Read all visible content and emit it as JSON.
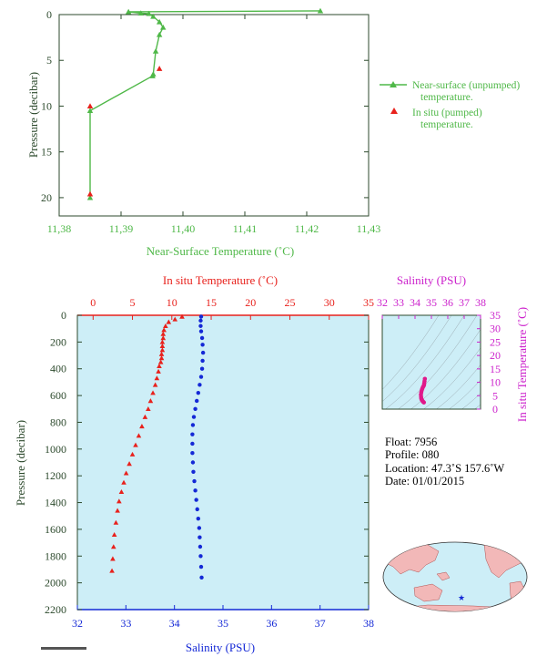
{
  "colors": {
    "green": "#4fb848",
    "red": "#e8211c",
    "blue": "#1428d6",
    "magenta": "#cc22cc",
    "axis_dark": "#2d4a2d",
    "panel_bg": "#cdeef7"
  },
  "chart_data": [
    {
      "type": "line",
      "xlabel": "Near-Surface Temperature (˚C)",
      "ylabel": "Pressure (decibar)",
      "xlim": [
        11.38,
        11.43
      ],
      "ylim": [
        22,
        0
      ],
      "xticks": [
        "11.38",
        "11.39",
        "11.40",
        "11.41",
        "11.42",
        "11.43"
      ],
      "yticks": [
        "0",
        "5",
        "10",
        "15",
        "20"
      ],
      "legend_position": "right",
      "series": [
        {
          "name": "Near-surface (unpumped) temperature.",
          "name_lines": [
            "Near-surface (unpumped)",
            "temperature."
          ],
          "marker": "triangle",
          "x": [
            11.4222,
            11.3912,
            11.3932,
            11.3945,
            11.3952,
            11.3962,
            11.3968,
            11.3962,
            11.3956,
            11.3952,
            11.3951,
            11.385,
            11.385
          ],
          "y": [
            -0.4,
            -0.3,
            -0.15,
            -0.1,
            0.2,
            0.8,
            1.4,
            2.2,
            4.0,
            6.5,
            6.7,
            10.5,
            20.0
          ]
        },
        {
          "name": "In situ (pumped) temperature.",
          "name_lines": [
            "In situ (pumped)",
            "temperature."
          ],
          "marker": "triangle",
          "x": [
            11.3962,
            11.385,
            11.385
          ],
          "y": [
            5.9,
            10.0,
            19.6
          ]
        }
      ]
    },
    {
      "type": "line",
      "xlabel_bottom": "Salinity (PSU)",
      "xlabel_top": "In situ Temperature (˚C)",
      "ylabel": "Pressure (decibar)",
      "xlim_salinity": [
        32,
        38
      ],
      "xlim_temperature": [
        -2,
        35
      ],
      "ylim": [
        2200,
        0
      ],
      "xticks_salinity": [
        "32",
        "33",
        "34",
        "35",
        "36",
        "37",
        "38"
      ],
      "xticks_temperature": [
        "0",
        "5",
        "10",
        "15",
        "20",
        "25",
        "30",
        "35"
      ],
      "yticks": [
        "0",
        "200",
        "400",
        "600",
        "800",
        "1000",
        "1200",
        "1400",
        "1600",
        "1800",
        "2000",
        "2200"
      ],
      "series": [
        {
          "marker": "triangle",
          "axis": "temperature",
          "x": [
            11.3,
            10.4,
            9.6,
            9.2,
            9.0,
            8.9,
            8.9,
            8.8,
            8.8,
            8.8,
            8.7,
            8.7,
            8.6,
            8.4,
            8.3,
            8.1,
            7.9,
            7.6,
            7.3,
            7.0,
            6.6,
            6.2,
            5.8,
            5.4,
            5.0,
            4.6,
            4.2,
            3.9,
            3.6,
            3.3,
            3.1,
            2.9,
            2.7,
            2.6,
            2.5,
            2.4
          ],
          "y": [
            10,
            30,
            50,
            80,
            110,
            140,
            170,
            200,
            230,
            260,
            290,
            320,
            350,
            380,
            420,
            470,
            520,
            580,
            640,
            700,
            760,
            830,
            900,
            970,
            1040,
            1110,
            1180,
            1250,
            1320,
            1390,
            1460,
            1550,
            1640,
            1730,
            1820,
            1910
          ]
        },
        {
          "marker": "dot",
          "axis": "salinity",
          "x": [
            34.55,
            34.54,
            34.54,
            34.55,
            34.57,
            34.58,
            34.59,
            34.58,
            34.57,
            34.55,
            34.52,
            34.49,
            34.46,
            34.43,
            34.4,
            34.38,
            34.37,
            34.37,
            34.37,
            34.38,
            34.39,
            34.41,
            34.43,
            34.45,
            34.47,
            34.49,
            34.51,
            34.52,
            34.53,
            34.54,
            34.55,
            34.56
          ],
          "y": [
            10,
            40,
            80,
            120,
            170,
            220,
            280,
            340,
            400,
            460,
            520,
            580,
            640,
            700,
            760,
            820,
            890,
            960,
            1030,
            1100,
            1170,
            1240,
            1310,
            1380,
            1450,
            1520,
            1590,
            1660,
            1730,
            1800,
            1880,
            1960
          ]
        }
      ]
    },
    {
      "type": "scatter",
      "xlabel": "Salinity (PSU)",
      "ylabel": "In situ Temperature (˚C)",
      "xlim": [
        32,
        38
      ],
      "ylim": [
        0,
        35
      ],
      "xticks": [
        "32",
        "33",
        "34",
        "35",
        "36",
        "37",
        "38"
      ],
      "yticks": [
        "0",
        "5",
        "10",
        "15",
        "20",
        "25",
        "30",
        "35"
      ],
      "series": [
        {
          "marker": "dot",
          "x": [
            34.6,
            34.58,
            34.56,
            34.55,
            34.52,
            34.48,
            34.44,
            34.41,
            34.38,
            34.36,
            34.37,
            34.38,
            34.4,
            34.43,
            34.46,
            34.5,
            34.54
          ],
          "y": [
            11.3,
            10.4,
            9.6,
            9.0,
            8.6,
            8.2,
            7.6,
            7.0,
            6.2,
            5.4,
            4.6,
            4.0,
            3.6,
            3.3,
            3.0,
            2.7,
            2.5
          ]
        }
      ]
    }
  ],
  "float_info": {
    "float": "Float:  7956",
    "profile": "Profile:  080",
    "location": "Location:  47.3˚S  157.6˚W",
    "date": "Date:  01/01/2015"
  },
  "map": {
    "marker_glyph": "★"
  }
}
